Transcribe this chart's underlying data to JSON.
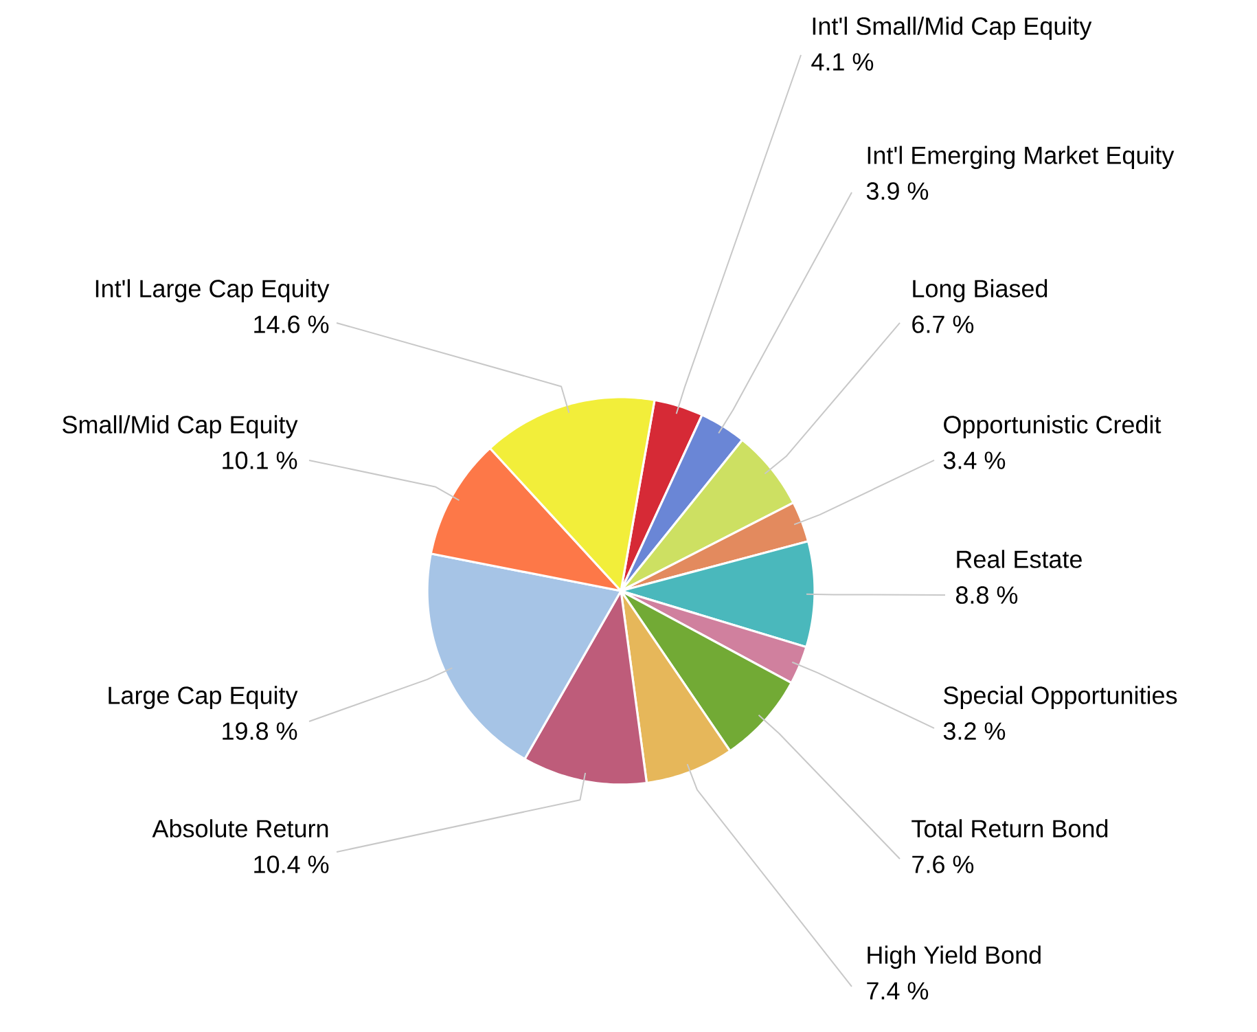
{
  "chart_data": {
    "type": "pie",
    "categories": [
      "Int'l Small/Mid Cap Equity",
      "Int'l Emerging Market Equity",
      "Long Biased",
      "Opportunistic Credit",
      "Real Estate",
      "Special Opportunities",
      "Total Return Bond",
      "High Yield Bond",
      "Absolute Return",
      "Large Cap Equity",
      "Small/Mid Cap Equity",
      "Int'l Large Cap Equity"
    ],
    "values": [
      4.1,
      3.9,
      6.7,
      3.4,
      8.8,
      3.2,
      7.6,
      7.4,
      10.4,
      19.8,
      10.1,
      14.6
    ],
    "value_labels": [
      "4.1 %",
      "3.9 %",
      "6.7 %",
      "3.4 %",
      "8.8 %",
      "3.2 %",
      "7.6 %",
      "7.4 %",
      "10.4 %",
      "19.8 %",
      "10.1 %",
      "14.6 %"
    ],
    "colors": [
      "#d62a36",
      "#6a86d6",
      "#cde062",
      "#e38a5e",
      "#4ab8bc",
      "#d0809e",
      "#72aa35",
      "#e6b75a",
      "#be5c7a",
      "#a6c4e6",
      "#fd7848",
      "#f2ee3a"
    ]
  }
}
